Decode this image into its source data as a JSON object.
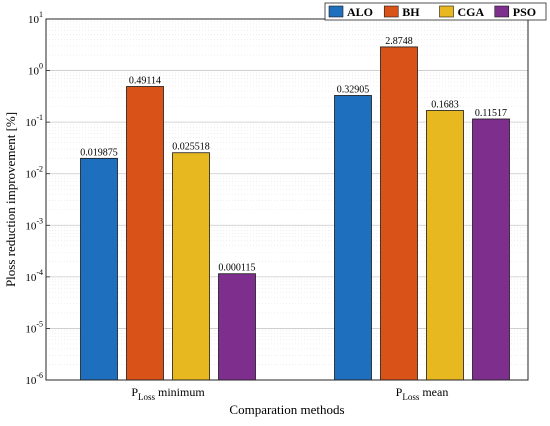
{
  "chart_data": {
    "type": "bar",
    "yscale": "log",
    "categories": [
      {
        "main": "P",
        "sub": "Loss",
        "suffix": " minimum"
      },
      {
        "main": "P",
        "sub": "Loss",
        "suffix": " mean"
      }
    ],
    "series": [
      {
        "name": "ALO",
        "color": "#1f6fbf",
        "values": [
          0.019875,
          0.32905
        ],
        "labels": [
          "0.019875",
          "0.32905"
        ]
      },
      {
        "name": "BH",
        "color": "#d95319",
        "values": [
          0.49114,
          2.8748
        ],
        "labels": [
          "0.49114",
          "2.8748"
        ]
      },
      {
        "name": "CGA",
        "color": "#e8b820",
        "values": [
          0.025518,
          0.1683
        ],
        "labels": [
          "0.025518",
          "0.1683"
        ]
      },
      {
        "name": "PSO",
        "color": "#7e2f8e",
        "values": [
          0.000115,
          0.11517
        ],
        "labels": [
          "0.000115",
          "0.11517"
        ]
      }
    ],
    "xlabel": "Comparation methods",
    "ylabel": "Ploss reduction improvement [%]",
    "ylim_exponents": [
      -6,
      1
    ],
    "ytick_exponents": [
      -6,
      -5,
      -4,
      -3,
      -2,
      -1,
      0,
      1
    ],
    "ytick_base": "10",
    "grid": true,
    "minor_grid": true,
    "legend_position": "top-right"
  }
}
